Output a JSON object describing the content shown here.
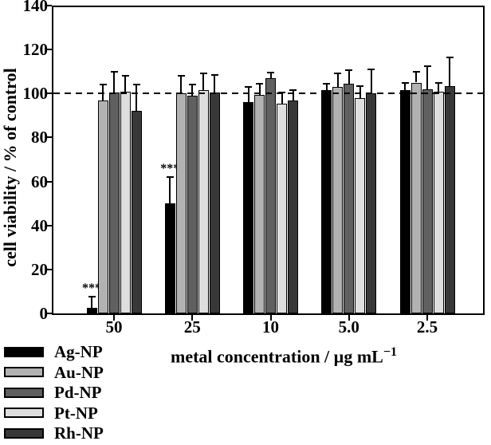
{
  "chart_data": {
    "type": "bar",
    "title": "",
    "xlabel": "metal concentration / µg mL⁻¹",
    "xlabel_main": "metal concentration / µg mL",
    "xlabel_sup": "−1",
    "ylabel": "cell viability / % of control",
    "ylim": [
      0,
      140
    ],
    "yticks": [
      0,
      20,
      40,
      60,
      80,
      100,
      120,
      140
    ],
    "categories": [
      "50",
      "25",
      "10",
      "5.0",
      "2.5"
    ],
    "reference_line_y": 100,
    "grid": false,
    "legend_position": "bottom-left",
    "axis_color": "#000000",
    "background_color": "#ffffff",
    "series": [
      {
        "name": "Ag-NP",
        "color": "#000000",
        "values": [
          2.5,
          50,
          96,
          101.5,
          101.5
        ],
        "errors": [
          5,
          12,
          7,
          3,
          3.5
        ],
        "significance": [
          "***",
          "***",
          "",
          "",
          ""
        ]
      },
      {
        "name": "Au-NP",
        "color": "#b2b2b2",
        "values": [
          97,
          100,
          99.5,
          103,
          105
        ],
        "errors": [
          7,
          8,
          5,
          6,
          5
        ],
        "significance": [
          "",
          "",
          "",
          "",
          ""
        ]
      },
      {
        "name": "Pd-NP",
        "color": "#606060",
        "values": [
          100.5,
          99,
          107,
          104.5,
          102
        ],
        "errors": [
          9.5,
          5,
          2.5,
          6,
          10.5
        ],
        "significance": [
          "",
          "",
          "",
          "",
          ""
        ]
      },
      {
        "name": "Pt-NP",
        "color": "#dedede",
        "values": [
          101,
          101.5,
          95.5,
          98,
          101
        ],
        "errors": [
          7,
          7.5,
          5,
          5.5,
          4
        ],
        "significance": [
          "",
          "",
          "",
          "",
          ""
        ]
      },
      {
        "name": "Rh-NP",
        "color": "#383838",
        "values": [
          92,
          100.5,
          97,
          100,
          103.5
        ],
        "errors": [
          12,
          8,
          4.5,
          11,
          13
        ],
        "significance": [
          "",
          "",
          "",
          "",
          ""
        ]
      }
    ],
    "legend_items": [
      {
        "label": "Ag-NP",
        "color": "#000000"
      },
      {
        "label": "Au-NP",
        "color": "#b2b2b2"
      },
      {
        "label": "Pd-NP",
        "color": "#606060"
      },
      {
        "label": "Pt-NP",
        "color": "#dedede"
      },
      {
        "label": "Rh-NP",
        "color": "#383838"
      }
    ]
  }
}
